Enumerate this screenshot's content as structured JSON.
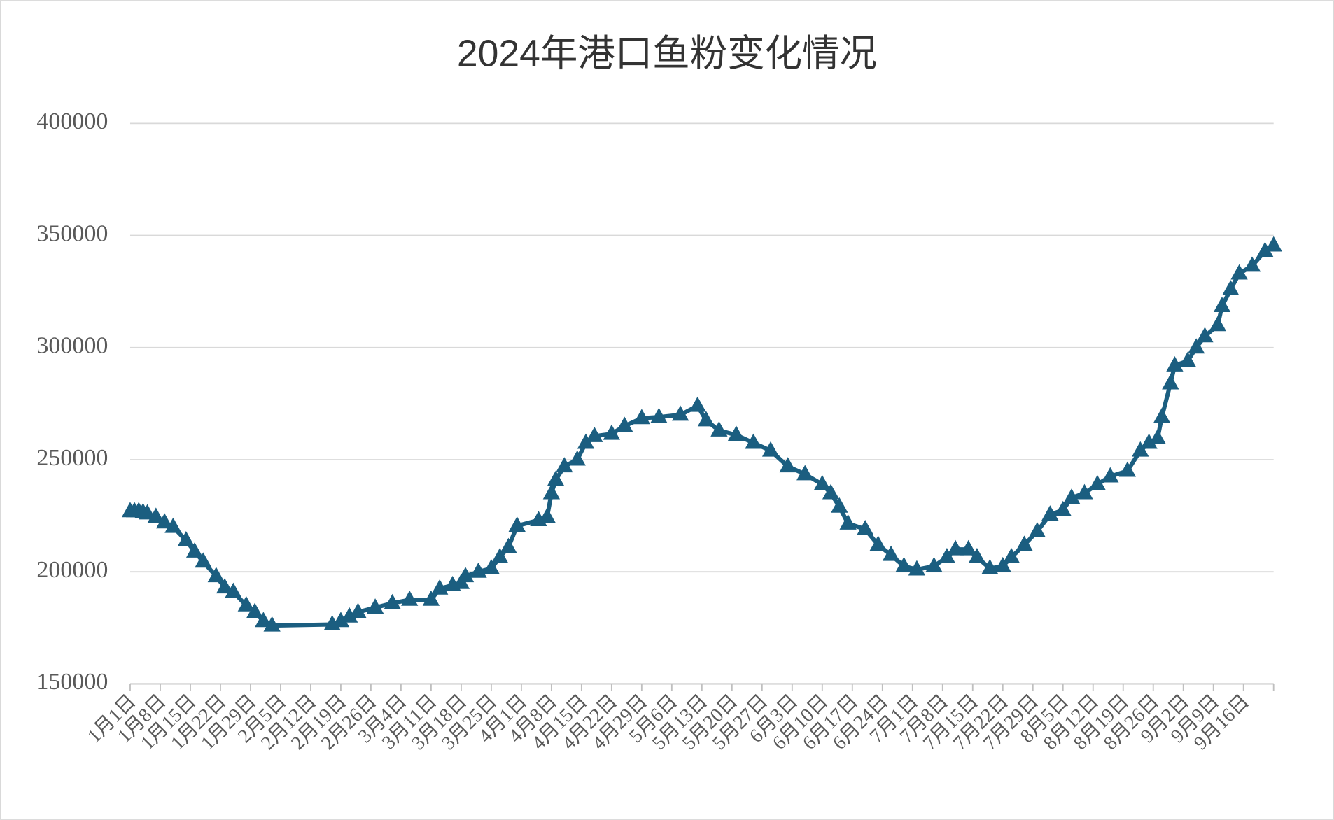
{
  "chart_data": {
    "type": "line",
    "title": "2024年港口鱼粉变化情况",
    "x": [
      0,
      1,
      2,
      3,
      4,
      6,
      8,
      10,
      13,
      15,
      17,
      20,
      22,
      24,
      27,
      29,
      31,
      33,
      47,
      49,
      51,
      53,
      57,
      61,
      65,
      70,
      72,
      75,
      77,
      78,
      81,
      84,
      86,
      88,
      90,
      95,
      97,
      98,
      99,
      101,
      104,
      106,
      108,
      112,
      115,
      119,
      123,
      128,
      132,
      134,
      137,
      141,
      145,
      149,
      153,
      157,
      161,
      163,
      165,
      167,
      171,
      174,
      177,
      180,
      183,
      187,
      190,
      192,
      195,
      197,
      200,
      203,
      205,
      208,
      211,
      214,
      217,
      219,
      222,
      225,
      228,
      232,
      235,
      237,
      239,
      240,
      242,
      243,
      246,
      248,
      250,
      253,
      254,
      256,
      258,
      261,
      264,
      266
    ],
    "series": [
      {
        "name": "港口鱼粉",
        "color": "#1b5e80",
        "values": [
          227000,
          227000,
          227000,
          226500,
          226000,
          224500,
          222000,
          220000,
          214000,
          209000,
          204500,
          198000,
          193000,
          191000,
          185000,
          182000,
          178000,
          176000,
          176500,
          178000,
          180000,
          182000,
          184000,
          186000,
          187500,
          187500,
          192500,
          194000,
          195000,
          198000,
          200000,
          201500,
          206500,
          211000,
          220500,
          223000,
          224500,
          235000,
          241000,
          247000,
          250000,
          257500,
          260500,
          261500,
          265000,
          268500,
          269000,
          270000,
          274000,
          267500,
          263000,
          261000,
          257500,
          254000,
          247000,
          243500,
          239000,
          235000,
          229000,
          221500,
          219000,
          212000,
          207500,
          202500,
          201000,
          202500,
          206500,
          210000,
          210000,
          206500,
          201500,
          202500,
          206500,
          212000,
          218000,
          225500,
          227500,
          233000,
          235000,
          239000,
          242500,
          245000,
          254000,
          257500,
          259500,
          269000,
          284000,
          292000,
          294000,
          300000,
          305000,
          310000,
          318500,
          326000,
          333000,
          336500,
          343000,
          345500
        ]
      }
    ],
    "xlim": [
      0,
      266
    ],
    "xticks": [
      {
        "value": 0,
        "label": "1月1日"
      },
      {
        "value": 7,
        "label": "1月8日"
      },
      {
        "value": 14,
        "label": "1月15日"
      },
      {
        "value": 21,
        "label": "1月22日"
      },
      {
        "value": 28,
        "label": "1月29日"
      },
      {
        "value": 35,
        "label": "2月5日"
      },
      {
        "value": 42,
        "label": "2月12日"
      },
      {
        "value": 49,
        "label": "2月19日"
      },
      {
        "value": 56,
        "label": "2月26日"
      },
      {
        "value": 63,
        "label": "3月4日"
      },
      {
        "value": 70,
        "label": "3月11日"
      },
      {
        "value": 77,
        "label": "3月18日"
      },
      {
        "value": 84,
        "label": "3月25日"
      },
      {
        "value": 91,
        "label": "4月1日"
      },
      {
        "value": 98,
        "label": "4月8日"
      },
      {
        "value": 105,
        "label": "4月15日"
      },
      {
        "value": 112,
        "label": "4月22日"
      },
      {
        "value": 119,
        "label": "4月29日"
      },
      {
        "value": 126,
        "label": "5月6日"
      },
      {
        "value": 133,
        "label": "5月13日"
      },
      {
        "value": 140,
        "label": "5月20日"
      },
      {
        "value": 147,
        "label": "5月27日"
      },
      {
        "value": 154,
        "label": "6月3日"
      },
      {
        "value": 161,
        "label": "6月10日"
      },
      {
        "value": 168,
        "label": "6月17日"
      },
      {
        "value": 175,
        "label": "6月24日"
      },
      {
        "value": 182,
        "label": "7月1日"
      },
      {
        "value": 189,
        "label": "7月8日"
      },
      {
        "value": 196,
        "label": "7月15日"
      },
      {
        "value": 203,
        "label": "7月22日"
      },
      {
        "value": 210,
        "label": "7月29日"
      },
      {
        "value": 217,
        "label": "8月5日"
      },
      {
        "value": 224,
        "label": "8月12日"
      },
      {
        "value": 231,
        "label": "8月19日"
      },
      {
        "value": 238,
        "label": "8月26日"
      },
      {
        "value": 245,
        "label": "9月2日"
      },
      {
        "value": 252,
        "label": "9月9日"
      },
      {
        "value": 259,
        "label": "9月16日"
      }
    ],
    "ylim": [
      150000,
      400000
    ],
    "yticks": [
      150000,
      200000,
      250000,
      300000,
      350000,
      400000
    ],
    "grid": true
  }
}
